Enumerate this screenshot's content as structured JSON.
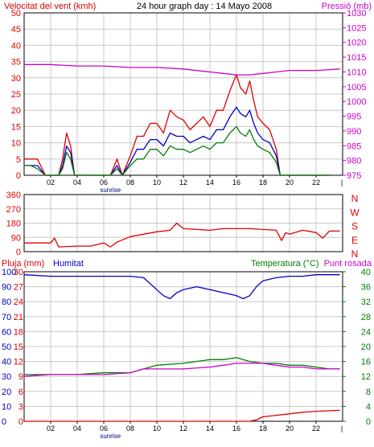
{
  "colors": {
    "red": "#e00000",
    "blue": "#0000c8",
    "green": "#008000",
    "magenta": "#cc00cc",
    "grid": "#c8c8c8",
    "frame": "#000000"
  },
  "chart_data": [
    {
      "type": "line",
      "title": "24 hour graph day : 14 Mayo 2008",
      "left_label": "Velocitat del vent (kmh)",
      "right_label": "Pressió (mb)",
      "x_ticks": [
        "02",
        "04",
        "06",
        "08",
        "10",
        "12",
        "14",
        "16",
        "18",
        "20",
        "22"
      ],
      "x_annotation": "sunrise",
      "ylim": [
        0,
        50
      ],
      "y_ticks": [
        "0",
        "5",
        "10",
        "15",
        "20",
        "25",
        "30",
        "35",
        "40",
        "45",
        "50"
      ],
      "y2lim": [
        975,
        1030
      ],
      "y2_ticks": [
        "975",
        "980",
        "985",
        "990",
        "995",
        "1000",
        "1005",
        "1010",
        "1015",
        "1020",
        "1025",
        "1030"
      ],
      "series": [
        {
          "name": "",
          "color": "red",
          "x": [
            0,
            0.5,
            1,
            1.6,
            2.2,
            2.6,
            2.9,
            3.2,
            3.5,
            3.8,
            4.2,
            5,
            6,
            6.5,
            7,
            7.4,
            8,
            8.5,
            9,
            9.5,
            10,
            10.5,
            11,
            11.5,
            12,
            12.5,
            13,
            13.5,
            14,
            14.5,
            15,
            15.5,
            16,
            16.3,
            16.7,
            17,
            17.3,
            17.6,
            18,
            18.5,
            19,
            19.3,
            19.6,
            20,
            21,
            22,
            23
          ],
          "values": [
            5,
            5,
            5,
            0,
            0,
            0,
            5,
            13,
            9,
            0,
            0,
            0,
            0,
            0,
            5,
            0,
            6,
            12,
            12,
            16,
            16,
            13,
            20,
            18,
            17,
            14,
            16,
            18,
            15,
            20,
            20,
            26,
            31,
            27,
            25,
            29,
            23,
            18,
            16,
            14,
            8,
            0,
            0,
            0,
            0,
            0,
            0
          ]
        },
        {
          "name": "",
          "color": "blue",
          "x": [
            0,
            0.5,
            1,
            1.6,
            2.2,
            2.6,
            2.9,
            3.2,
            3.5,
            3.8,
            4.2,
            5,
            6,
            6.5,
            7,
            7.4,
            8,
            8.5,
            9,
            9.5,
            10,
            10.5,
            11,
            11.5,
            12,
            12.5,
            13,
            13.5,
            14,
            14.5,
            15,
            15.5,
            16,
            16.3,
            16.7,
            17,
            17.3,
            17.6,
            18,
            18.5,
            19,
            19.3,
            19.6,
            20,
            21,
            22,
            23
          ],
          "values": [
            3,
            3,
            3,
            0,
            0,
            0,
            3,
            9,
            7,
            0,
            0,
            0,
            0,
            0,
            3,
            0,
            4,
            8,
            8,
            11,
            11,
            9,
            13,
            12,
            12,
            10,
            11,
            12,
            11,
            14,
            14,
            18,
            21,
            19,
            18,
            20,
            16,
            13,
            11,
            10,
            6,
            0,
            0,
            0,
            0,
            0,
            0
          ]
        },
        {
          "name": "",
          "color": "green",
          "x": [
            0,
            0.5,
            1,
            1.6,
            2.2,
            2.6,
            2.9,
            3.2,
            3.5,
            3.8,
            4.2,
            5,
            6,
            6.5,
            7,
            7.4,
            8,
            8.5,
            9,
            9.5,
            10,
            10.5,
            11,
            11.5,
            12,
            12.5,
            13,
            13.5,
            14,
            14.5,
            15,
            15.5,
            16,
            16.3,
            16.7,
            17,
            17.3,
            17.6,
            18,
            18.5,
            19,
            19.3,
            19.6,
            20,
            21,
            22,
            23
          ],
          "values": [
            3,
            3,
            2,
            0,
            0,
            0,
            2,
            7,
            5,
            0,
            0,
            0,
            0,
            0,
            2,
            0,
            3,
            5,
            5,
            8,
            8,
            6,
            9,
            8,
            8,
            7,
            8,
            9,
            8,
            10,
            10,
            13,
            15,
            13,
            12,
            14,
            11,
            9,
            8,
            7,
            4,
            0,
            0,
            0,
            0,
            0,
            0
          ]
        },
        {
          "name": "",
          "color": "magenta",
          "axis": "right",
          "x": [
            0,
            2,
            4,
            6,
            8,
            10,
            12,
            14,
            15,
            16,
            17,
            18,
            19,
            20,
            22,
            23.8
          ],
          "values": [
            1012.5,
            1012.5,
            1012,
            1012,
            1011.5,
            1011.5,
            1011,
            1010,
            1009.5,
            1009,
            1009,
            1009.5,
            1010,
            1010.5,
            1010.5,
            1011
          ]
        }
      ]
    },
    {
      "type": "line",
      "right_label": [
        "N",
        "W",
        "S",
        "E",
        "N"
      ],
      "ylim": [
        0,
        360
      ],
      "y_ticks": [
        "0",
        "90",
        "180",
        "270",
        "360"
      ],
      "x_ticks": [],
      "series": [
        {
          "name": "",
          "color": "red",
          "x": [
            0,
            1,
            2,
            2.3,
            2.6,
            4,
            4.5,
            5,
            6,
            6.5,
            7,
            8,
            9,
            10,
            11,
            11.5,
            12,
            13,
            14,
            15,
            16,
            17,
            18,
            19,
            19.4,
            19.7,
            20,
            21,
            22,
            22.5,
            23,
            23.8
          ],
          "values": [
            55,
            55,
            55,
            85,
            30,
            35,
            35,
            35,
            55,
            30,
            60,
            95,
            110,
            125,
            135,
            180,
            145,
            140,
            135,
            145,
            145,
            145,
            140,
            135,
            70,
            120,
            110,
            135,
            120,
            85,
            130,
            130
          ]
        }
      ]
    },
    {
      "type": "line",
      "left_label": "Pluja (mm)",
      "left_label2": "Humitat",
      "right_label": "Temperatura (°C)",
      "right_label2": "Punt rosada",
      "x_ticks": [
        "02",
        "04",
        "06",
        "08",
        "10",
        "12",
        "14",
        "16",
        "18",
        "20",
        "22"
      ],
      "x_annotation": "sunrise",
      "ylim": [
        0,
        100
      ],
      "y_ticks_left": [
        "0",
        "10",
        "20",
        "30",
        "40",
        "50",
        "60",
        "70",
        "80",
        "90",
        "100"
      ],
      "y_ticks_mid": [
        "0",
        "3",
        "6",
        "9",
        "12",
        "15",
        "18",
        "21",
        "24",
        "27",
        "30"
      ],
      "y2lim": [
        0,
        40
      ],
      "y2_ticks": [
        "0",
        "4",
        "8",
        "12",
        "16",
        "20",
        "24",
        "28",
        "32",
        "36",
        "40"
      ],
      "series": [
        {
          "name": "",
          "color": "blue",
          "x": [
            0,
            2,
            4,
            6,
            8,
            9,
            10,
            10.5,
            11,
            11.5,
            12,
            13,
            14,
            15,
            16,
            16.5,
            17,
            17.5,
            18,
            19,
            20,
            21,
            22,
            23,
            23.8
          ],
          "values": [
            98,
            97,
            97,
            97,
            97,
            96,
            88,
            84,
            82,
            86,
            88,
            90,
            88,
            86,
            84,
            82,
            84,
            90,
            94,
            96,
            97,
            97,
            98,
            98,
            98
          ]
        },
        {
          "name": "",
          "color": "green",
          "axis": "right",
          "x": [
            0,
            2,
            4,
            6,
            8,
            9,
            10,
            12,
            14,
            15,
            16,
            17,
            18,
            19,
            20,
            21,
            22,
            23,
            23.8
          ],
          "values": [
            12.5,
            12.5,
            12.5,
            13,
            13,
            14,
            15,
            15.5,
            16.5,
            16.5,
            17,
            16,
            15.5,
            15.5,
            15,
            15,
            14.5,
            14,
            14
          ]
        },
        {
          "name": "",
          "color": "magenta",
          "axis": "right",
          "x": [
            0,
            2,
            4,
            6,
            8,
            9,
            10,
            12,
            14,
            15,
            16,
            17,
            18,
            19,
            20,
            21,
            22,
            23,
            23.8
          ],
          "values": [
            12,
            12.5,
            12.5,
            12.5,
            13,
            14,
            14,
            14,
            14.5,
            15,
            15.5,
            15.5,
            15.5,
            15,
            14.5,
            14.5,
            14,
            14,
            14
          ]
        },
        {
          "name": "",
          "color": "red",
          "axis": "mid",
          "x": [
            0,
            14,
            16,
            17,
            17.5,
            18,
            19,
            20,
            21,
            22,
            23.8
          ],
          "values": [
            0,
            0,
            0,
            0,
            0.3,
            0.9,
            1.2,
            1.5,
            1.8,
            2,
            2.2
          ]
        }
      ]
    }
  ]
}
